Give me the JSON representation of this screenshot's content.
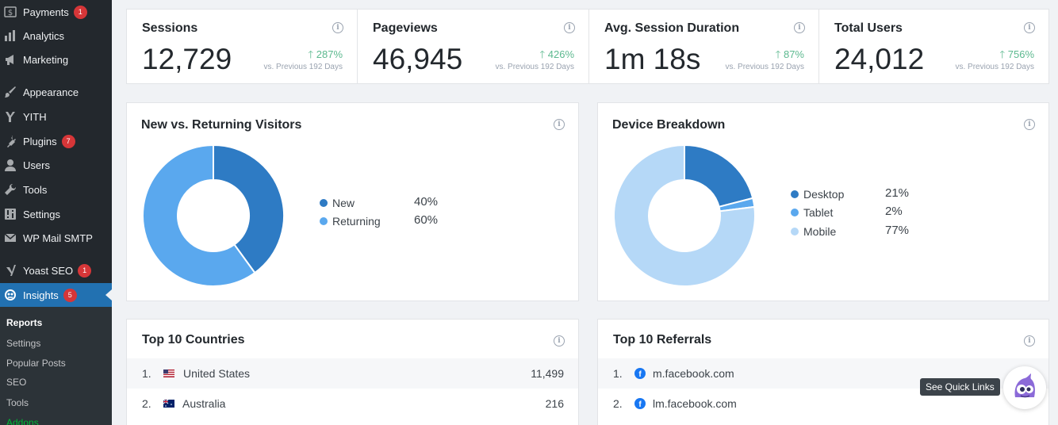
{
  "sidebar": {
    "items": [
      {
        "label": "Payments",
        "icon": "dollar-icon",
        "badge": "1"
      },
      {
        "label": "Analytics",
        "icon": "bar-chart-icon",
        "badge": ""
      },
      {
        "label": "Marketing",
        "icon": "megaphone-icon",
        "badge": ""
      },
      {
        "label": "Appearance",
        "icon": "brush-icon",
        "badge": ""
      },
      {
        "label": "YITH",
        "icon": "yith-icon",
        "badge": ""
      },
      {
        "label": "Plugins",
        "icon": "plug-icon",
        "badge": "7"
      },
      {
        "label": "Users",
        "icon": "user-icon",
        "badge": ""
      },
      {
        "label": "Tools",
        "icon": "wrench-icon",
        "badge": ""
      },
      {
        "label": "Settings",
        "icon": "sliders-icon",
        "badge": ""
      },
      {
        "label": "WP Mail SMTP",
        "icon": "mail-icon",
        "badge": ""
      },
      {
        "label": "Yoast SEO",
        "icon": "yoast-icon",
        "badge": "1"
      },
      {
        "label": "Insights",
        "icon": "insights-icon",
        "badge": "5"
      }
    ],
    "submenu": [
      "Reports",
      "Settings",
      "Popular Posts",
      "SEO",
      "Tools",
      "Addons"
    ]
  },
  "stats": [
    {
      "label": "Sessions",
      "value": "12,729",
      "change": "287%",
      "vs": "vs. Previous 192 Days"
    },
    {
      "label": "Pageviews",
      "value": "46,945",
      "change": "426%",
      "vs": "vs. Previous 192 Days"
    },
    {
      "label": "Avg. Session Duration",
      "value": "1m 18s",
      "change": "87%",
      "vs": "vs. Previous 192 Days"
    },
    {
      "label": "Total Users",
      "value": "24,012",
      "change": "756%",
      "vs": "vs. Previous 192 Days"
    }
  ],
  "visitors": {
    "title": "New vs. Returning Visitors",
    "legend": [
      {
        "label": "New",
        "pct": "40%",
        "value": 40,
        "color": "#2e7bc4"
      },
      {
        "label": "Returning",
        "pct": "60%",
        "value": 60,
        "color": "#5aa8ee"
      }
    ]
  },
  "devices": {
    "title": "Device Breakdown",
    "legend": [
      {
        "label": "Desktop",
        "pct": "21%",
        "value": 21,
        "color": "#2e7bc4"
      },
      {
        "label": "Tablet",
        "pct": "2%",
        "value": 2,
        "color": "#5aa8ee"
      },
      {
        "label": "Mobile",
        "pct": "77%",
        "value": 77,
        "color": "#b5d8f7"
      }
    ]
  },
  "countries": {
    "title": "Top 10 Countries",
    "rows": [
      {
        "num": "1.",
        "name": "United States",
        "count": "11,499"
      },
      {
        "num": "2.",
        "name": "Australia",
        "count": "216"
      }
    ]
  },
  "referrals": {
    "title": "Top 10 Referrals",
    "rows": [
      {
        "num": "1.",
        "name": "m.facebook.com"
      },
      {
        "num": "2.",
        "name": "lm.facebook.com"
      }
    ]
  },
  "tooltip": "See Quick Links",
  "info_glyph": "i"
}
